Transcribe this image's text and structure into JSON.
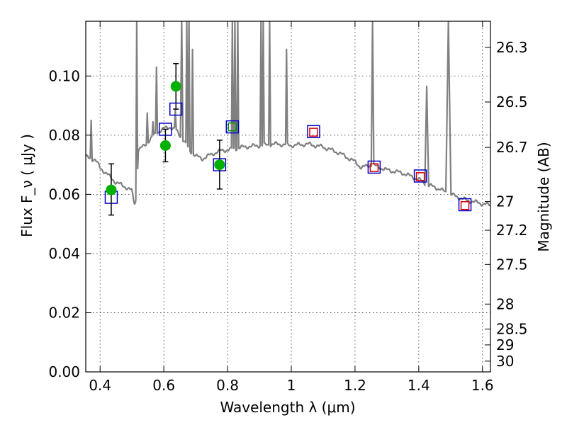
{
  "chart_data": {
    "type": "scatter",
    "xlabel": "Wavelength  λ (μm)",
    "ylabel": "Flux  F_ν  ( μJy )",
    "ylabel_right": "Magnitude (AB)",
    "xlim": [
      0.355,
      1.625
    ],
    "ylim": [
      0.0,
      0.1185
    ],
    "grid": true,
    "x_ticks": [
      {
        "value": 0.4,
        "label": "0.4"
      },
      {
        "value": 0.6,
        "label": "0.6"
      },
      {
        "value": 0.8,
        "label": "0.8"
      },
      {
        "value": 1.0,
        "label": "1"
      },
      {
        "value": 1.2,
        "label": "1.2"
      },
      {
        "value": 1.4,
        "label": "1.4"
      },
      {
        "value": 1.6,
        "label": "1.6"
      }
    ],
    "y_ticks": [
      {
        "value": 0.0,
        "label": "0.00"
      },
      {
        "value": 0.02,
        "label": "0.02"
      },
      {
        "value": 0.04,
        "label": "0.04"
      },
      {
        "value": 0.06,
        "label": "0.06"
      },
      {
        "value": 0.08,
        "label": "0.08"
      },
      {
        "value": 0.1,
        "label": "0.10"
      }
    ],
    "y2_ticks": [
      {
        "value": 26.3,
        "label": "26.3"
      },
      {
        "value": 26.5,
        "label": "26.5"
      },
      {
        "value": 26.7,
        "label": "26.7"
      },
      {
        "value": 27.0,
        "label": "27"
      },
      {
        "value": 27.2,
        "label": "27.2"
      },
      {
        "value": 27.5,
        "label": "27.5"
      },
      {
        "value": 28.0,
        "label": "28"
      },
      {
        "value": 28.5,
        "label": "28.5"
      },
      {
        "value": 29.0,
        "label": "29"
      },
      {
        "value": 30.0,
        "label": "30"
      }
    ],
    "ab_zero_point_ujy": 3631000000,
    "series": [
      {
        "marker": "line",
        "color": "#808080",
        "baseline": [
          [
            0.355,
            0.0726
          ],
          [
            0.37,
            0.0722
          ],
          [
            0.385,
            0.0716
          ],
          [
            0.4,
            0.069
          ],
          [
            0.42,
            0.067
          ],
          [
            0.45,
            0.064
          ],
          [
            0.48,
            0.0625
          ],
          [
            0.5,
            0.0612
          ],
          [
            0.505,
            0.058
          ],
          [
            0.51,
            0.0565
          ],
          [
            0.515,
            0.061
          ],
          [
            0.52,
            0.075
          ],
          [
            0.54,
            0.0765
          ],
          [
            0.56,
            0.079
          ],
          [
            0.58,
            0.081
          ],
          [
            0.6,
            0.0822
          ],
          [
            0.62,
            0.0828
          ],
          [
            0.64,
            0.0815
          ],
          [
            0.66,
            0.0785
          ],
          [
            0.68,
            0.075
          ],
          [
            0.7,
            0.073
          ],
          [
            0.72,
            0.072
          ],
          [
            0.74,
            0.073
          ],
          [
            0.76,
            0.074
          ],
          [
            0.78,
            0.0748
          ],
          [
            0.8,
            0.075
          ],
          [
            0.85,
            0.076
          ],
          [
            0.9,
            0.0765
          ],
          [
            0.95,
            0.077
          ],
          [
            0.98,
            0.0768
          ],
          [
            1.0,
            0.0765
          ],
          [
            1.05,
            0.077
          ],
          [
            1.1,
            0.076
          ],
          [
            1.15,
            0.074
          ],
          [
            1.2,
            0.071
          ],
          [
            1.22,
            0.069
          ],
          [
            1.25,
            0.07
          ],
          [
            1.28,
            0.069
          ],
          [
            1.3,
            0.0682
          ],
          [
            1.35,
            0.0672
          ],
          [
            1.4,
            0.065
          ],
          [
            1.43,
            0.063
          ],
          [
            1.45,
            0.0625
          ],
          [
            1.47,
            0.0615
          ],
          [
            1.5,
            0.06
          ],
          [
            1.55,
            0.058
          ],
          [
            1.58,
            0.0573
          ],
          [
            1.6,
            0.0568
          ],
          [
            1.625,
            0.0563
          ]
        ],
        "spikes": [
          {
            "x": 0.372,
            "peak": 0.085,
            "width": 0.003
          },
          {
            "x": 0.515,
            "peak": 0.1185,
            "width": 0.003
          },
          {
            "x": 0.548,
            "peak": 0.0875,
            "width": 0.003
          },
          {
            "x": 0.566,
            "peak": 0.0845,
            "width": 0.003
          },
          {
            "x": 0.577,
            "peak": 0.103,
            "width": 0.003
          },
          {
            "x": 0.636,
            "peak": 0.0885,
            "width": 0.003
          },
          {
            "x": 0.656,
            "peak": 0.1185,
            "width": 0.004
          },
          {
            "x": 0.672,
            "peak": 0.1185,
            "width": 0.003
          },
          {
            "x": 0.679,
            "peak": 0.1185,
            "width": 0.003
          },
          {
            "x": 0.69,
            "peak": 0.109,
            "width": 0.003
          },
          {
            "x": 0.815,
            "peak": 0.1185,
            "width": 0.003
          },
          {
            "x": 0.823,
            "peak": 0.1185,
            "width": 0.003
          },
          {
            "x": 0.832,
            "peak": 0.1185,
            "width": 0.003
          },
          {
            "x": 0.905,
            "peak": 0.1185,
            "width": 0.003
          },
          {
            "x": 0.912,
            "peak": 0.1185,
            "width": 0.003
          },
          {
            "x": 0.932,
            "peak": 0.1185,
            "width": 0.003
          },
          {
            "x": 0.985,
            "peak": 0.109,
            "width": 0.003
          },
          {
            "x": 1.255,
            "peak": 0.1185,
            "width": 0.004
          },
          {
            "x": 1.425,
            "peak": 0.0965,
            "width": 0.006
          },
          {
            "x": 1.493,
            "peak": 0.1185,
            "width": 0.008
          }
        ]
      },
      {
        "marker": "open-square",
        "color": "#0000cc",
        "size": "large",
        "x": [
          0.435,
          0.605,
          0.638,
          0.775,
          0.815,
          1.07,
          1.26,
          1.405,
          1.545
        ],
        "y": [
          0.059,
          0.082,
          0.0888,
          0.07,
          0.0828,
          0.0812,
          0.0692,
          0.0662,
          0.0565
        ]
      },
      {
        "marker": "open-square",
        "color": "#dd0000",
        "size": "small",
        "x": [
          1.07,
          1.26,
          1.405,
          1.545
        ],
        "y": [
          0.081,
          0.069,
          0.066,
          0.0562
        ]
      },
      {
        "marker": "open-square",
        "color": "#008800",
        "size": "small",
        "x": [
          0.815
        ],
        "y": [
          0.0828
        ]
      },
      {
        "marker": "filled-circle",
        "color": "#00b000",
        "x": [
          0.435,
          0.605,
          0.638,
          0.775
        ],
        "y": [
          0.0615,
          0.0765,
          0.0965,
          0.07
        ],
        "error_low": [
          0.053,
          0.071,
          0.0888,
          0.0618
        ],
        "error_high": [
          0.0703,
          0.082,
          0.1042,
          0.0783
        ]
      }
    ]
  }
}
